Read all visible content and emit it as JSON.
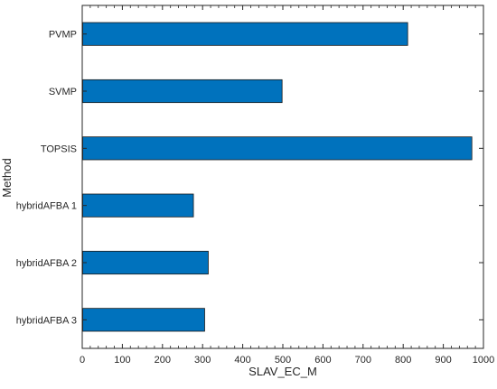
{
  "chart_data": {
    "type": "bar",
    "orientation": "horizontal",
    "categories": [
      "PVMP",
      "SVMP",
      "TOPSIS",
      "hybridAFBA 1",
      "hybridAFBA 2",
      "hybridAFBA 3"
    ],
    "values": [
      810,
      497,
      970,
      276,
      313,
      304
    ],
    "xlabel": "SLAV_EC_M",
    "ylabel": "Method",
    "xlim": [
      0,
      1000
    ],
    "xticks": [
      "0",
      "100",
      "200",
      "300",
      "400",
      "500",
      "600",
      "700",
      "800",
      "900",
      "1000"
    ],
    "grid": false,
    "bar_color": "#0072BD",
    "bar_edge_color": "#1a1a1a"
  }
}
